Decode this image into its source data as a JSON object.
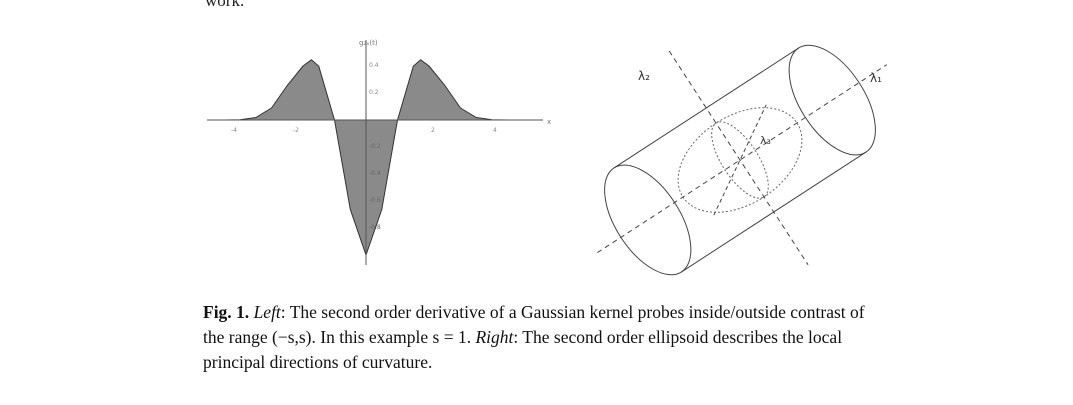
{
  "top_fragment": "work.",
  "figure_left": {
    "ylabel": "g₂ₓ(t)",
    "x_axis_label": "x",
    "x_ticks": [
      "-4",
      "-2",
      "2",
      "4"
    ],
    "y_ticks_pos": [
      "0.4",
      "0.2"
    ],
    "y_ticks_neg": [
      "-0.2",
      "-0.4",
      "-0.6",
      "-0.8"
    ],
    "fill_color": "#8a8a8a",
    "chart_data": {
      "type": "area",
      "x": [
        -4.5,
        -4.0,
        -3.5,
        -3.0,
        -2.5,
        -2.0,
        -1.7320508,
        -1.5,
        -1.0,
        -0.5,
        0.0,
        0.5,
        1.0,
        1.5,
        1.7320508,
        2.0,
        2.5,
        3.0,
        3.5,
        4.0,
        4.5
      ],
      "y": [
        0.0003,
        0.0016,
        0.0186,
        0.0886,
        0.256,
        0.4,
        0.4462,
        0.3976,
        0.0,
        -0.6619,
        -1.0,
        -0.6619,
        0.0,
        0.3976,
        0.4462,
        0.4,
        0.256,
        0.0886,
        0.0186,
        0.0016,
        0.0003
      ],
      "xlim": [
        -5,
        5
      ],
      "ylim": [
        -1.0,
        0.5
      ]
    }
  },
  "figure_right": {
    "labels": {
      "lambda1": "λ₁",
      "lambda2": "λ₂",
      "lambda3": "λ₃"
    }
  },
  "caption": {
    "fig_label": "Fig. 1.",
    "left_label": "Left",
    "left_text": ": The second order derivative of a Gaussian kernel probes inside/outside contrast of the range (−s,s). In this example s = 1. ",
    "right_label": "Right",
    "right_text": ": The second order ellipsoid describes the local principal directions of curvature."
  }
}
